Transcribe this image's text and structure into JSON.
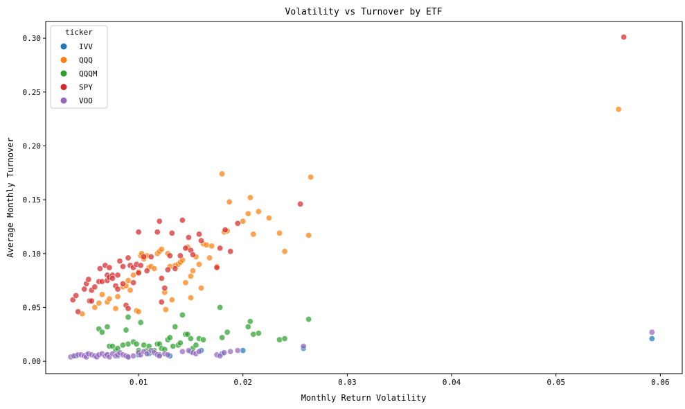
{
  "chart_data": {
    "type": "scatter",
    "title": "Volatility vs Turnover by ETF",
    "xlabel": "Monthly Return Volatility",
    "ylabel": "Average Monthly Turnover",
    "xlim": [
      0.0011,
      0.0621
    ],
    "ylim": [
      -0.0115,
      0.3155
    ],
    "xticks": [
      0.01,
      0.02,
      0.03,
      0.04,
      0.05,
      0.06
    ],
    "xtick_labels": [
      "0.01",
      "0.02",
      "0.03",
      "0.04",
      "0.05",
      "0.06"
    ],
    "yticks": [
      0.0,
      0.05,
      0.1,
      0.15,
      0.2,
      0.25,
      0.3
    ],
    "ytick_labels": [
      "0.00",
      "0.05",
      "0.10",
      "0.15",
      "0.20",
      "0.25",
      "0.30"
    ],
    "grid": false,
    "legend": {
      "title": "ticker",
      "placement": "top-left"
    },
    "series": [
      {
        "name": "IVV",
        "color": "#1f77b4",
        "points": [
          [
            0.004,
            0.005
          ],
          [
            0.005,
            0.006
          ],
          [
            0.006,
            0.005
          ],
          [
            0.007,
            0.006
          ],
          [
            0.008,
            0.005
          ],
          [
            0.009,
            0.004
          ],
          [
            0.01,
            0.006
          ],
          [
            0.011,
            0.007
          ],
          [
            0.012,
            0.006
          ],
          [
            0.013,
            0.005
          ],
          [
            0.015,
            0.009
          ],
          [
            0.016,
            0.01
          ],
          [
            0.018,
            0.007
          ],
          [
            0.02,
            0.01
          ],
          [
            0.0258,
            0.012
          ],
          [
            0.0592,
            0.021
          ]
        ]
      },
      {
        "name": "QQQ",
        "color": "#ff7f0e",
        "points": [
          [
            0.0046,
            0.044
          ],
          [
            0.0058,
            0.05
          ],
          [
            0.0062,
            0.054
          ],
          [
            0.0065,
            0.062
          ],
          [
            0.007,
            0.055
          ],
          [
            0.0072,
            0.058
          ],
          [
            0.0078,
            0.049
          ],
          [
            0.008,
            0.06
          ],
          [
            0.0085,
            0.069
          ],
          [
            0.0088,
            0.07
          ],
          [
            0.009,
            0.075
          ],
          [
            0.0092,
            0.066
          ],
          [
            0.0095,
            0.08
          ],
          [
            0.0098,
            0.047
          ],
          [
            0.01,
            0.046
          ],
          [
            0.01,
            0.083
          ],
          [
            0.0102,
            0.098
          ],
          [
            0.0103,
            0.1
          ],
          [
            0.0105,
            0.095
          ],
          [
            0.0108,
            0.098
          ],
          [
            0.011,
            0.087
          ],
          [
            0.0112,
            0.088
          ],
          [
            0.0115,
            0.086
          ],
          [
            0.0118,
            0.1
          ],
          [
            0.012,
            0.102
          ],
          [
            0.0122,
            0.104
          ],
          [
            0.0125,
            0.064
          ],
          [
            0.0126,
            0.048
          ],
          [
            0.0128,
            0.1
          ],
          [
            0.013,
            0.088
          ],
          [
            0.0132,
            0.057
          ],
          [
            0.0135,
            0.089
          ],
          [
            0.0138,
            0.09
          ],
          [
            0.014,
            0.092
          ],
          [
            0.0142,
            0.094
          ],
          [
            0.0145,
            0.073
          ],
          [
            0.0147,
            0.106
          ],
          [
            0.015,
            0.079
          ],
          [
            0.015,
            0.059
          ],
          [
            0.0152,
            0.084
          ],
          [
            0.0155,
            0.097
          ],
          [
            0.0158,
            0.09
          ],
          [
            0.016,
            0.068
          ],
          [
            0.0162,
            0.109
          ],
          [
            0.0165,
            0.108
          ],
          [
            0.0168,
            0.096
          ],
          [
            0.017,
            0.107
          ],
          [
            0.0175,
            0.088
          ],
          [
            0.018,
            0.174
          ],
          [
            0.0182,
            0.12
          ],
          [
            0.0185,
            0.121
          ],
          [
            0.0187,
            0.148
          ],
          [
            0.02,
            0.13
          ],
          [
            0.0205,
            0.137
          ],
          [
            0.0207,
            0.152
          ],
          [
            0.021,
            0.118
          ],
          [
            0.0215,
            0.139
          ],
          [
            0.0225,
            0.133
          ],
          [
            0.0235,
            0.119
          ],
          [
            0.024,
            0.102
          ],
          [
            0.0263,
            0.117
          ],
          [
            0.0265,
            0.171
          ],
          [
            0.056,
            0.234
          ]
        ]
      },
      {
        "name": "QQQM",
        "color": "#2ca02c",
        "points": [
          [
            0.0062,
            0.03
          ],
          [
            0.0065,
            0.027
          ],
          [
            0.007,
            0.032
          ],
          [
            0.0072,
            0.014
          ],
          [
            0.0075,
            0.014
          ],
          [
            0.0078,
            0.01
          ],
          [
            0.008,
            0.012
          ],
          [
            0.0085,
            0.015
          ],
          [
            0.0088,
            0.029
          ],
          [
            0.009,
            0.041
          ],
          [
            0.009,
            0.016
          ],
          [
            0.0095,
            0.018
          ],
          [
            0.0098,
            0.016
          ],
          [
            0.01,
            0.01
          ],
          [
            0.0102,
            0.036
          ],
          [
            0.0105,
            0.015
          ],
          [
            0.0108,
            0.01
          ],
          [
            0.011,
            0.014
          ],
          [
            0.0115,
            0.01
          ],
          [
            0.0118,
            0.016
          ],
          [
            0.012,
            0.016
          ],
          [
            0.0122,
            0.012
          ],
          [
            0.0125,
            0.011
          ],
          [
            0.0128,
            0.02
          ],
          [
            0.013,
            0.022
          ],
          [
            0.0133,
            0.014
          ],
          [
            0.0135,
            0.032
          ],
          [
            0.0138,
            0.015
          ],
          [
            0.014,
            0.017
          ],
          [
            0.0142,
            0.043
          ],
          [
            0.0145,
            0.025
          ],
          [
            0.0147,
            0.025
          ],
          [
            0.015,
            0.021
          ],
          [
            0.0152,
            0.012
          ],
          [
            0.0155,
            0.015
          ],
          [
            0.0158,
            0.021
          ],
          [
            0.0162,
            0.02
          ],
          [
            0.0178,
            0.05
          ],
          [
            0.018,
            0.022
          ],
          [
            0.0185,
            0.027
          ],
          [
            0.0205,
            0.032
          ],
          [
            0.0207,
            0.037
          ],
          [
            0.021,
            0.025
          ],
          [
            0.0215,
            0.026
          ],
          [
            0.0235,
            0.02
          ],
          [
            0.024,
            0.021
          ],
          [
            0.0263,
            0.039
          ]
        ]
      },
      {
        "name": "SPY",
        "color": "#d62728",
        "points": [
          [
            0.0037,
            0.057
          ],
          [
            0.004,
            0.061
          ],
          [
            0.0042,
            0.046
          ],
          [
            0.0048,
            0.067
          ],
          [
            0.005,
            0.072
          ],
          [
            0.0052,
            0.076
          ],
          [
            0.0053,
            0.056
          ],
          [
            0.0055,
            0.066
          ],
          [
            0.0055,
            0.056
          ],
          [
            0.0058,
            0.069
          ],
          [
            0.0062,
            0.074
          ],
          [
            0.0063,
            0.086
          ],
          [
            0.0065,
            0.074
          ],
          [
            0.0068,
            0.089
          ],
          [
            0.007,
            0.08
          ],
          [
            0.007,
            0.075
          ],
          [
            0.0072,
            0.087
          ],
          [
            0.0072,
            0.078
          ],
          [
            0.0075,
            0.08
          ],
          [
            0.0075,
            0.077
          ],
          [
            0.0078,
            0.07
          ],
          [
            0.008,
            0.08
          ],
          [
            0.008,
            0.067
          ],
          [
            0.0082,
            0.093
          ],
          [
            0.0085,
            0.088
          ],
          [
            0.0085,
            0.072
          ],
          [
            0.0088,
            0.052
          ],
          [
            0.009,
            0.049
          ],
          [
            0.009,
            0.096
          ],
          [
            0.0092,
            0.089
          ],
          [
            0.0095,
            0.073
          ],
          [
            0.0095,
            0.087
          ],
          [
            0.0098,
            0.09
          ],
          [
            0.01,
            0.12
          ],
          [
            0.01,
            0.082
          ],
          [
            0.0102,
            0.089
          ],
          [
            0.0105,
            0.097
          ],
          [
            0.0108,
            0.084
          ],
          [
            0.0112,
            0.097
          ],
          [
            0.0118,
            0.12
          ],
          [
            0.012,
            0.13
          ],
          [
            0.0122,
            0.077
          ],
          [
            0.0122,
            0.055
          ],
          [
            0.0125,
            0.068
          ],
          [
            0.0128,
            0.085
          ],
          [
            0.013,
            0.098
          ],
          [
            0.0132,
            0.119
          ],
          [
            0.0135,
            0.086
          ],
          [
            0.014,
            0.098
          ],
          [
            0.0142,
            0.131
          ],
          [
            0.0145,
            0.105
          ],
          [
            0.0148,
            0.115
          ],
          [
            0.015,
            0.103
          ],
          [
            0.0152,
            0.099
          ],
          [
            0.0158,
            0.118
          ],
          [
            0.016,
            0.112
          ],
          [
            0.0175,
            0.087
          ],
          [
            0.0178,
            0.105
          ],
          [
            0.0183,
            0.122
          ],
          [
            0.0188,
            0.102
          ],
          [
            0.0195,
            0.128
          ],
          [
            0.0255,
            0.146
          ],
          [
            0.0565,
            0.301
          ]
        ]
      },
      {
        "name": "VOO",
        "color": "#9467bd",
        "points": [
          [
            0.0035,
            0.004
          ],
          [
            0.0038,
            0.005
          ],
          [
            0.0042,
            0.006
          ],
          [
            0.0045,
            0.006
          ],
          [
            0.0048,
            0.005
          ],
          [
            0.005,
            0.004
          ],
          [
            0.0052,
            0.007
          ],
          [
            0.0055,
            0.006
          ],
          [
            0.0058,
            0.005
          ],
          [
            0.006,
            0.004
          ],
          [
            0.0062,
            0.006
          ],
          [
            0.0065,
            0.007
          ],
          [
            0.0068,
            0.005
          ],
          [
            0.007,
            0.006
          ],
          [
            0.0072,
            0.004
          ],
          [
            0.0075,
            0.007
          ],
          [
            0.0078,
            0.005
          ],
          [
            0.008,
            0.006
          ],
          [
            0.0082,
            0.008
          ],
          [
            0.0085,
            0.006
          ],
          [
            0.0088,
            0.005
          ],
          [
            0.009,
            0.004
          ],
          [
            0.0095,
            0.005
          ],
          [
            0.01,
            0.008
          ],
          [
            0.0102,
            0.006
          ],
          [
            0.0105,
            0.009
          ],
          [
            0.0108,
            0.007
          ],
          [
            0.0112,
            0.01
          ],
          [
            0.0115,
            0.008
          ],
          [
            0.0118,
            0.006
          ],
          [
            0.012,
            0.005
          ],
          [
            0.0125,
            0.007
          ],
          [
            0.0128,
            0.006
          ],
          [
            0.0142,
            0.009
          ],
          [
            0.0148,
            0.01
          ],
          [
            0.0152,
            0.008
          ],
          [
            0.0155,
            0.007
          ],
          [
            0.0158,
            0.009
          ],
          [
            0.0175,
            0.006
          ],
          [
            0.0178,
            0.005
          ],
          [
            0.0182,
            0.008
          ],
          [
            0.0188,
            0.009
          ],
          [
            0.0195,
            0.01
          ],
          [
            0.0258,
            0.014
          ],
          [
            0.0592,
            0.027
          ]
        ]
      }
    ]
  }
}
